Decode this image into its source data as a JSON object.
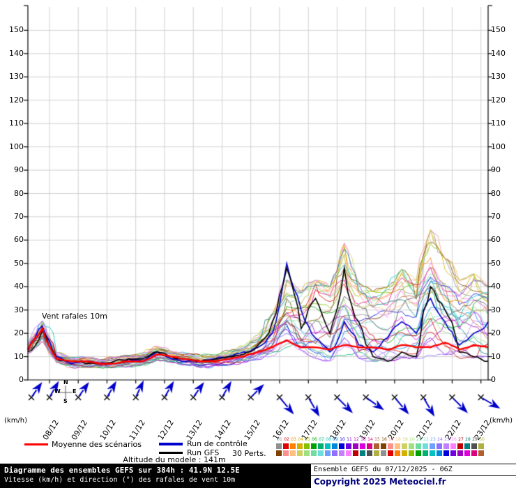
{
  "meta": {
    "title_bar": "Diagramme des ensembles GEFS sur 384h : 41.9N 12.5E",
    "subtitle_bar": "Vitesse (km/h) et direction (°) des rafales de vent 10m",
    "run_info": "Ensemble GEFS du 07/12/2025 - 06Z",
    "copyright": "Copyright 2025 Meteociel.fr",
    "altitude_note": "Altitude du modele : 141m"
  },
  "axis": {
    "unit_left": "(km/h)",
    "unit_right": "(km/h)"
  },
  "compass": {
    "n": "N",
    "e": "E",
    "s": "S",
    "w": "W"
  },
  "legend": {
    "mean_label": "Moyenne des scénarios",
    "control_label": "Run de contrôle",
    "gfs_label": "Run GFS",
    "perts_label": "30 Perts.",
    "pert_numbers": [
      "01",
      "02",
      "03",
      "04",
      "05",
      "06",
      "07",
      "08",
      "09",
      "10",
      "11",
      "12",
      "13",
      "14",
      "15",
      "16",
      "17",
      "18",
      "19",
      "20",
      "21",
      "22",
      "23",
      "24",
      "25",
      "26",
      "27",
      "28",
      "29",
      "30"
    ],
    "pert_colors": [
      "#909090",
      "#e00000",
      "#ff8000",
      "#d4b000",
      "#88c000",
      "#00a000",
      "#00b070",
      "#00c0c0",
      "#0088dd",
      "#0000dd",
      "#7000dd",
      "#a000c0",
      "#dd00dd",
      "#dd0080",
      "#b06030",
      "#804000",
      "#ff9090",
      "#ffc080",
      "#d0d060",
      "#a0e080",
      "#70dda0",
      "#70dddd",
      "#70a0ff",
      "#9070ff",
      "#c080ff",
      "#ff80ff",
      "#c00000",
      "#008080",
      "#505050",
      "#b0b040"
    ],
    "pert_colors_row2": [
      "#804000",
      "#ff9090",
      "#ffc080",
      "#d0d060",
      "#a0e080",
      "#70dda0",
      "#70dddd",
      "#70a0ff",
      "#9070ff",
      "#c080ff",
      "#ff80ff",
      "#c00000",
      "#008080",
      "#505050",
      "#b0b040",
      "#909090",
      "#e00000",
      "#ff8000",
      "#d4b000",
      "#88c000",
      "#00a000",
      "#00b070",
      "#00c0c0",
      "#0088dd",
      "#0000dd",
      "#7000dd",
      "#a000c0",
      "#dd00dd",
      "#dd0080",
      "#b06030"
    ]
  },
  "chart_data": {
    "type": "line",
    "title": "Vent rafales 10m",
    "ylabel": "(km/h)",
    "xlabel": "",
    "ylim": [
      0,
      160
    ],
    "grid": true,
    "y_ticks": [
      0,
      10,
      20,
      30,
      40,
      50,
      60,
      70,
      80,
      90,
      100,
      110,
      120,
      130,
      140,
      150
    ],
    "x_hours": [
      0,
      12,
      24,
      36,
      48,
      60,
      72,
      84,
      96,
      108,
      120,
      132,
      144,
      156,
      168,
      180,
      192,
      204,
      216,
      228,
      240,
      252,
      264,
      276,
      288,
      300,
      312,
      324,
      336,
      348,
      360,
      372,
      384
    ],
    "x_tick_labels": [
      "08/12",
      "09/12",
      "10/12",
      "11/12",
      "12/12",
      "13/12",
      "14/12",
      "15/12",
      "16/12",
      "17/12",
      "18/12",
      "19/12",
      "20/12",
      "21/12",
      "22/12",
      "23/12"
    ],
    "series": [
      {
        "name": "Moyenne des scénarios",
        "color": "#ff0000",
        "width": 2.4,
        "values": [
          13,
          22,
          9,
          8,
          8,
          7,
          7,
          8,
          8,
          11,
          10,
          9,
          8,
          8,
          9,
          10,
          12,
          14,
          17,
          14,
          14,
          13,
          15,
          14,
          14,
          13,
          15,
          14,
          14,
          16,
          13,
          15,
          14
        ]
      },
      {
        "name": "Run de contrôle",
        "color": "#0000cc",
        "width": 1.6,
        "values": [
          13,
          23,
          10,
          7,
          8,
          7,
          7,
          9,
          8,
          12,
          9,
          8,
          8,
          9,
          10,
          12,
          14,
          20,
          50,
          30,
          18,
          12,
          25,
          15,
          12,
          18,
          25,
          20,
          35,
          25,
          15,
          20,
          25
        ]
      },
      {
        "name": "Run GFS",
        "color": "#000000",
        "width": 1.6,
        "values": [
          12,
          21,
          9,
          8,
          7,
          7,
          8,
          9,
          9,
          12,
          10,
          9,
          8,
          9,
          10,
          11,
          15,
          25,
          48,
          22,
          35,
          20,
          48,
          25,
          10,
          8,
          12,
          10,
          40,
          30,
          12,
          10,
          8
        ]
      }
    ],
    "ensemble": {
      "count": 30,
      "envelope_min": [
        11,
        16,
        7,
        5,
        5,
        5,
        5,
        5,
        6,
        8,
        7,
        6,
        5,
        6,
        6,
        7,
        8,
        9,
        10,
        8,
        7,
        6,
        7,
        7,
        6,
        6,
        7,
        7,
        7,
        8,
        7,
        7,
        8
      ],
      "envelope_max": [
        16,
        26,
        12,
        10,
        10,
        9,
        10,
        11,
        12,
        15,
        13,
        12,
        11,
        11,
        13,
        15,
        20,
        30,
        45,
        40,
        45,
        42,
        62,
        45,
        40,
        42,
        50,
        45,
        68,
        55,
        45,
        48,
        42
      ]
    }
  },
  "wind_barbs": {
    "color": "#0000cc",
    "directions_deg": [
      35,
      30,
      35,
      30,
      25,
      30,
      35,
      30,
      45,
      140,
      150,
      135,
      125,
      140,
      150,
      135,
      120
    ]
  }
}
